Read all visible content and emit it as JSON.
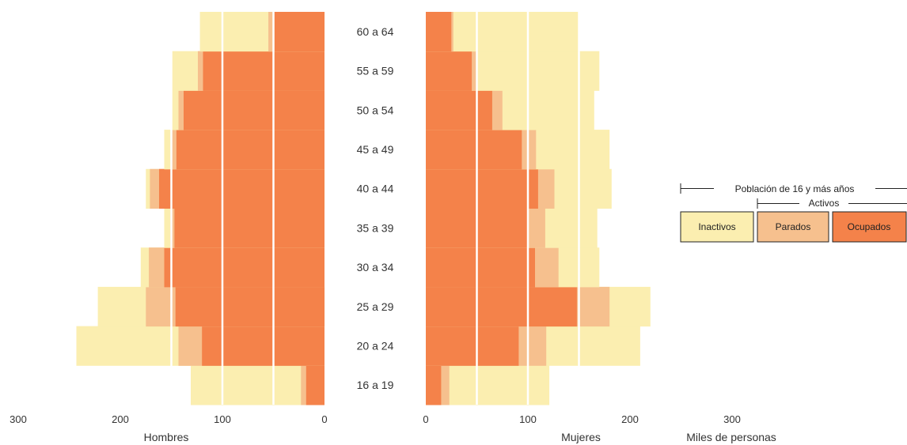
{
  "chart_data": {
    "type": "bar",
    "age_groups": [
      "16 a 19",
      "20 a 24",
      "25 a 29",
      "30 a 34",
      "35 a 39",
      "40 a 44",
      "45 a 49",
      "50 a 54",
      "55 a 59",
      "60 a 64"
    ],
    "hombres": {
      "label": "Hombres",
      "ocupados": [
        18,
        120,
        146,
        157,
        147,
        162,
        145,
        138,
        119,
        49
      ],
      "parados": [
        23,
        143,
        175,
        172,
        151,
        171,
        150,
        143,
        124,
        55
      ],
      "poblacion": [
        131,
        243,
        222,
        180,
        157,
        175,
        157,
        150,
        150,
        122
      ]
    },
    "mujeres": {
      "label": "Mujeres",
      "ocupados": [
        15,
        91,
        148,
        107,
        100,
        110,
        94,
        65,
        45,
        25
      ],
      "parados": [
        23,
        118,
        180,
        130,
        117,
        126,
        108,
        75,
        50,
        27
      ],
      "poblacion": [
        121,
        210,
        220,
        170,
        168,
        182,
        180,
        165,
        170,
        150
      ]
    },
    "x_ticks_left": [
      "300",
      "200",
      "100",
      "0"
    ],
    "x_ticks_right": [
      "0",
      "100",
      "200",
      "300"
    ],
    "xlim": [
      0,
      300
    ],
    "gridlines": [
      50,
      100,
      150
    ],
    "unit_label": "Miles de personas",
    "legend": {
      "poblacion_label": "Población de 16 y más años",
      "activos_label": "Activos",
      "items": [
        {
          "name": "Inactivos",
          "color": "#fbeeb0"
        },
        {
          "name": "Parados",
          "color": "#f6c08e"
        },
        {
          "name": "Ocupados",
          "color": "#f4824a"
        }
      ]
    }
  },
  "colors": {
    "inactivos": "#fbeeb0",
    "parados": "#f6c08e",
    "ocupados": "#f4824a",
    "grid": "#ffffff"
  }
}
